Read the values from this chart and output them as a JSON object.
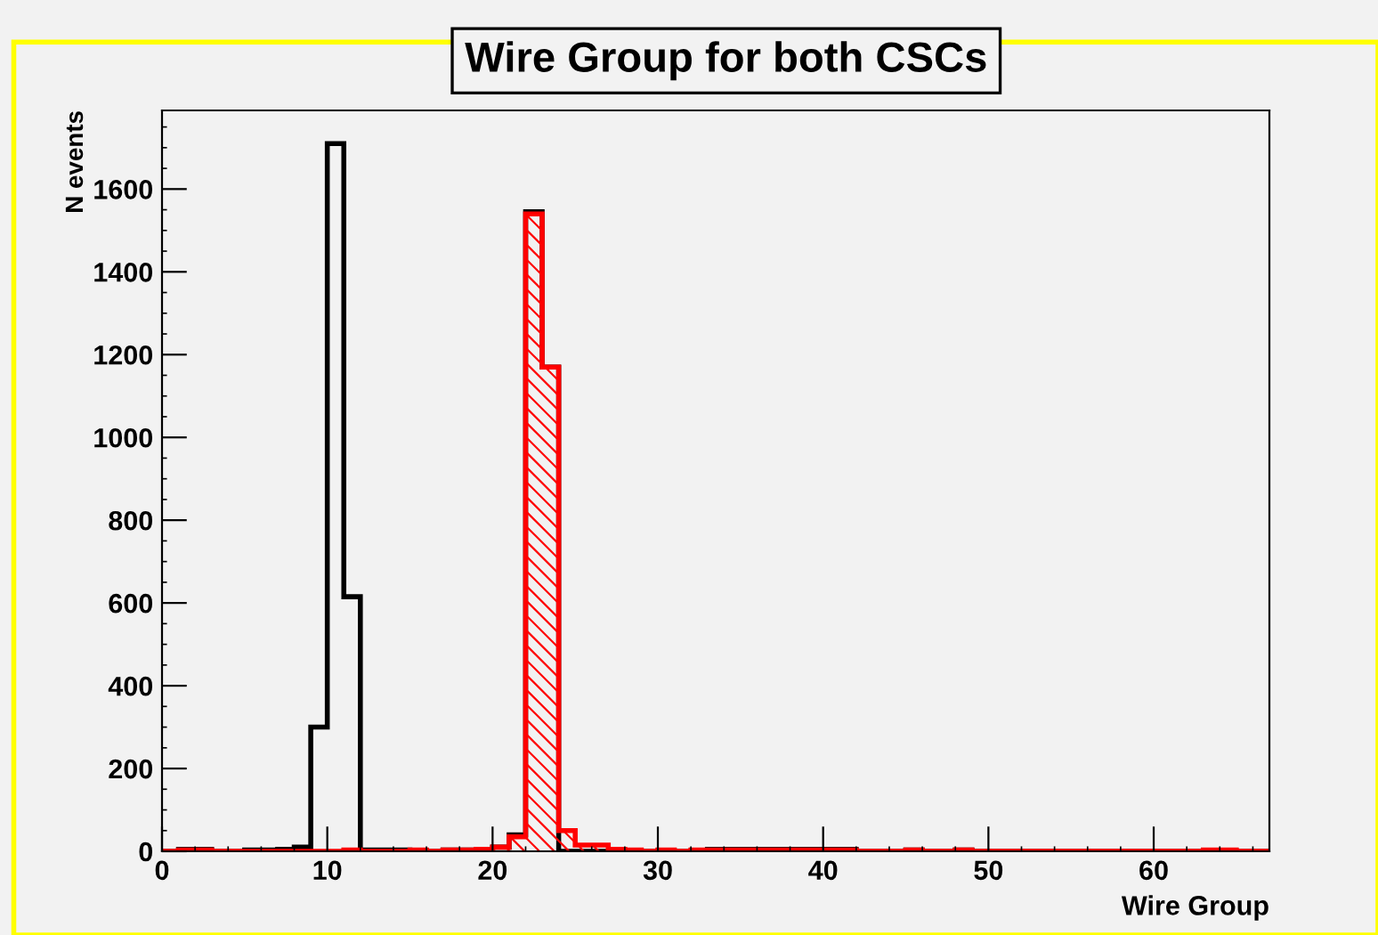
{
  "chart_data": {
    "type": "histogram",
    "title": "Wire Group for both CSCs",
    "xlabel": "Wire Group",
    "ylabel": "N events",
    "bins": [
      0,
      1,
      2,
      3,
      4,
      5,
      6,
      7,
      8,
      9,
      10,
      11,
      12,
      13,
      14,
      15,
      16,
      17,
      18,
      19,
      20,
      21,
      22,
      23,
      24,
      25,
      26,
      27,
      28,
      29,
      30,
      31,
      32,
      33,
      34,
      35,
      36,
      37,
      38,
      39,
      40,
      41,
      42,
      43,
      44,
      45,
      46,
      47,
      48,
      49,
      50,
      51,
      52,
      53,
      54,
      55,
      56,
      57,
      58,
      59,
      60,
      61,
      62,
      63,
      64,
      65,
      66,
      67
    ],
    "series": [
      {
        "color": "#000000",
        "values": [
          0,
          5,
          5,
          0,
          0,
          3,
          3,
          5,
          10,
          300,
          1710,
          615,
          3,
          3,
          3,
          0,
          0,
          3,
          3,
          5,
          10,
          40,
          1545,
          1170,
          0,
          0,
          0,
          0,
          0,
          0,
          0,
          0,
          0,
          5,
          5,
          5,
          5,
          5,
          5,
          5,
          5,
          5,
          0,
          0,
          0,
          3,
          0,
          0,
          3,
          0,
          0,
          0,
          0,
          0,
          0,
          0,
          0,
          0,
          0,
          0,
          0,
          0,
          0,
          0,
          0,
          0,
          0
        ]
      },
      {
        "color": "#ff0000",
        "values": [
          0,
          3,
          3,
          0,
          0,
          0,
          0,
          0,
          0,
          0,
          0,
          3,
          0,
          0,
          0,
          3,
          0,
          3,
          3,
          5,
          10,
          35,
          1540,
          1170,
          50,
          15,
          15,
          5,
          3,
          0,
          3,
          0,
          3,
          3,
          3,
          3,
          3,
          3,
          3,
          3,
          3,
          3,
          0,
          0,
          0,
          3,
          0,
          0,
          3,
          0,
          0,
          0,
          0,
          0,
          0,
          0,
          0,
          0,
          0,
          0,
          0,
          0,
          0,
          3,
          3,
          0,
          0
        ]
      }
    ],
    "xlim": [
      0,
      67
    ],
    "ylim": [
      0,
      1790
    ],
    "xticks": [
      0,
      10,
      20,
      30,
      40,
      50,
      60
    ],
    "yticks": [
      0,
      200,
      400,
      600,
      800,
      1000,
      1200,
      1400,
      1600
    ],
    "grid": false,
    "legend": false
  }
}
